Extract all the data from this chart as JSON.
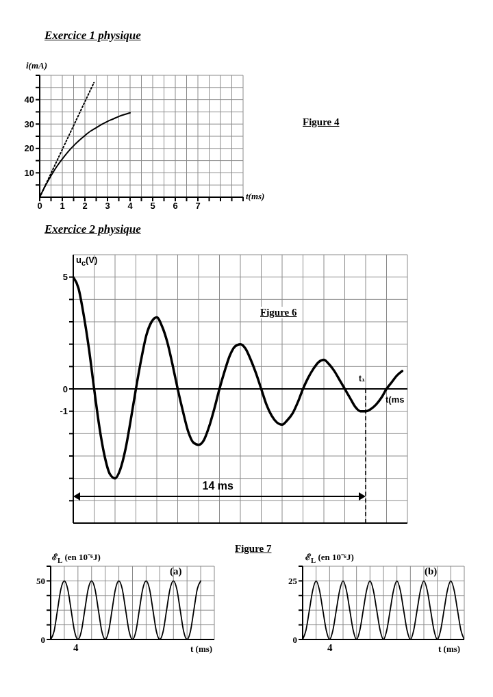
{
  "chart_data": [
    {
      "type": "line",
      "title": "Exercice 1 physique",
      "xlabel": "t(ms)",
      "ylabel": "i(mA)",
      "annotations": [
        "Figure 4"
      ],
      "xlim": [
        0,
        9
      ],
      "ylim": [
        0,
        50
      ],
      "xticks": [
        0,
        {
          "value": 0.5,
          "label": null
        },
        1,
        {
          "value": 1.5,
          "label": null
        },
        2,
        {
          "value": 2.5,
          "label": null
        },
        3,
        {
          "value": 3.5,
          "label": null
        },
        4,
        {
          "value": 4.5,
          "label": null
        },
        5,
        {
          "value": 5.5,
          "label": null
        },
        6,
        {
          "value": 6.5,
          "label": null
        },
        7,
        {
          "value": 7.5,
          "label": null
        },
        {
          "value": 8,
          "label": null
        },
        {
          "value": 8.5,
          "label": null
        },
        {
          "value": 9,
          "label": null
        }
      ],
      "yticks": [
        {
          "value": 5,
          "label": null
        },
        10,
        {
          "value": 15,
          "label": null
        },
        20,
        {
          "value": 25,
          "label": null
        },
        30,
        {
          "value": 35,
          "label": null
        },
        40,
        {
          "value": 45,
          "label": null
        },
        {
          "value": 50,
          "label": null
        }
      ],
      "grid": true,
      "marker": "none",
      "series": [
        {
          "color": "#000000",
          "line_style": "solid",
          "x": [
            0,
            0.25,
            0.5,
            0.75,
            1,
            1.25,
            1.5,
            1.75,
            2,
            2.25,
            2.5,
            2.75,
            3,
            3.25,
            3.5,
            3.75,
            4
          ],
          "values": [
            0,
            4.7,
            8.8,
            12.5,
            15.7,
            18.6,
            21.1,
            23.3,
            25.3,
            27.1,
            28.5,
            29.9,
            31.1,
            32.1,
            33.1,
            33.9,
            34.6
          ]
        },
        {
          "color": "#000000",
          "line_style": "dotted",
          "x": [
            0,
            2.4
          ],
          "values": [
            0,
            47
          ]
        }
      ]
    },
    {
      "type": "line",
      "title": "Exercice 2 physique",
      "xlabel": "t(ms",
      "ylabel": "u$_{c}$(V)",
      "annotations": [
        "Figure 6",
        "14 ms",
        "t₁"
      ],
      "ylim": [
        -6,
        6
      ],
      "categories": [
        null,
        null,
        null,
        null,
        null,
        null,
        null,
        null,
        null,
        null,
        null,
        null,
        null,
        null,
        null,
        null,
        null,
        null,
        null,
        null,
        null,
        null,
        null,
        null,
        null,
        null,
        null,
        null,
        null,
        null,
        null,
        null,
        null,
        null,
        null,
        null,
        null,
        null,
        null,
        null,
        null,
        null,
        null,
        null,
        null,
        null,
        null,
        null,
        null,
        null,
        null,
        null,
        null,
        null,
        null,
        null,
        null,
        null,
        null,
        null,
        null,
        null,
        null,
        null
      ],
      "yticks": [
        {
          "value": -5,
          "label": null
        },
        {
          "value": -4,
          "label": null
        },
        {
          "value": -3,
          "label": null
        },
        {
          "value": -2,
          "label": null
        },
        -1,
        0,
        {
          "value": 1,
          "label": null
        },
        {
          "value": 2,
          "label": null
        },
        {
          "value": 3,
          "label": null
        },
        {
          "value": 4,
          "label": null
        },
        5
      ],
      "grid": true,
      "marker": "none",
      "series": [
        {
          "color": "#000000",
          "line_style": "solid",
          "values": [
            5.0,
            4.5,
            3.3,
            1.8,
            0,
            -1.7,
            -3.0,
            -3.8,
            -4.0,
            -3.6,
            -2.7,
            -1.4,
            0,
            1.3,
            2.4,
            3.0,
            3.2,
            2.8,
            2.1,
            1.1,
            0,
            -1.0,
            -1.9,
            -2.4,
            -2.5,
            -2.3,
            -1.7,
            -0.9,
            0,
            0.8,
            1.5,
            1.9,
            2.0,
            1.8,
            1.3,
            0.7,
            0,
            -0.7,
            -1.2,
            -1.5,
            -1.6,
            -1.4,
            -1.1,
            -0.6,
            0,
            0.5,
            0.9,
            1.2,
            1.3,
            1.1,
            0.8,
            0.4,
            0,
            -0.4,
            -0.8,
            -1.0,
            -1.0,
            -0.9,
            -0.7,
            -0.4,
            0,
            0.3,
            0.6,
            0.8
          ]
        }
      ]
    },
    {
      "type": "line",
      "xlabel": "t (ms)",
      "ylabel": "ℰ$_{L}$ (en 10⁻⁶J)",
      "annotations": [
        "Figure 7",
        "(a)",
        "4"
      ],
      "ylim": [
        0,
        62.5
      ],
      "categories": [
        null,
        null,
        null,
        null,
        null,
        null,
        null,
        null,
        null,
        null,
        null,
        null,
        null,
        null,
        null,
        null,
        null,
        null,
        null,
        null,
        null,
        null,
        null,
        null,
        null,
        null,
        null,
        null,
        null,
        null,
        null,
        null,
        null,
        null,
        null,
        null,
        null,
        null,
        null,
        null,
        null,
        null,
        null,
        null,
        null
      ],
      "yticks": [
        0,
        {
          "value": 12.5,
          "label": null
        },
        {
          "value": 25,
          "label": null
        },
        {
          "value": 37.5,
          "label": null
        },
        50,
        {
          "value": 62.5,
          "label": null
        }
      ],
      "grid": true,
      "marker": "none",
      "series": [
        {
          "color": "#000000",
          "line_style": "solid",
          "values": [
            0,
            7,
            25,
            43,
            50,
            43,
            25,
            7,
            0,
            7,
            25,
            43,
            50,
            43,
            25,
            7,
            0,
            7,
            25,
            43,
            50,
            43,
            25,
            7,
            0,
            7,
            25,
            43,
            50,
            43,
            25,
            7,
            0,
            7,
            25,
            43,
            50,
            43,
            25,
            7,
            0,
            7,
            25,
            43,
            50
          ]
        }
      ]
    },
    {
      "type": "line",
      "xlabel": "t (ms)",
      "ylabel": "ℰ$_{L}$ (en 10⁻⁶J)",
      "annotations": [
        "(b)",
        "4"
      ],
      "ylim": [
        0,
        31.25
      ],
      "categories": [
        null,
        null,
        null,
        null,
        null,
        null,
        null,
        null,
        null,
        null,
        null,
        null,
        null,
        null,
        null,
        null,
        null,
        null,
        null,
        null,
        null,
        null,
        null,
        null,
        null,
        null,
        null,
        null,
        null,
        null,
        null,
        null,
        null,
        null,
        null,
        null,
        null,
        null,
        null,
        null,
        null,
        null,
        null,
        null,
        null,
        null,
        null,
        null,
        null
      ],
      "yticks": [
        0,
        {
          "value": 6.25,
          "label": null
        },
        {
          "value": 12.5,
          "label": null
        },
        {
          "value": 18.75,
          "label": null
        },
        25,
        {
          "value": 31.25,
          "label": null
        }
      ],
      "grid": true,
      "marker": "none",
      "series": [
        {
          "color": "#000000",
          "line_style": "solid",
          "values": [
            0,
            4,
            12.5,
            21,
            25,
            21,
            12.5,
            4,
            0,
            4,
            12.5,
            21,
            25,
            21,
            12.5,
            4,
            0,
            4,
            12.5,
            21,
            25,
            21,
            12.5,
            4,
            0,
            4,
            12.5,
            21,
            25,
            21,
            12.5,
            4,
            0,
            4,
            12.5,
            21,
            25,
            21,
            12.5,
            4,
            0,
            4,
            12.5,
            21,
            25,
            21,
            12.5,
            4,
            0
          ]
        }
      ]
    }
  ]
}
